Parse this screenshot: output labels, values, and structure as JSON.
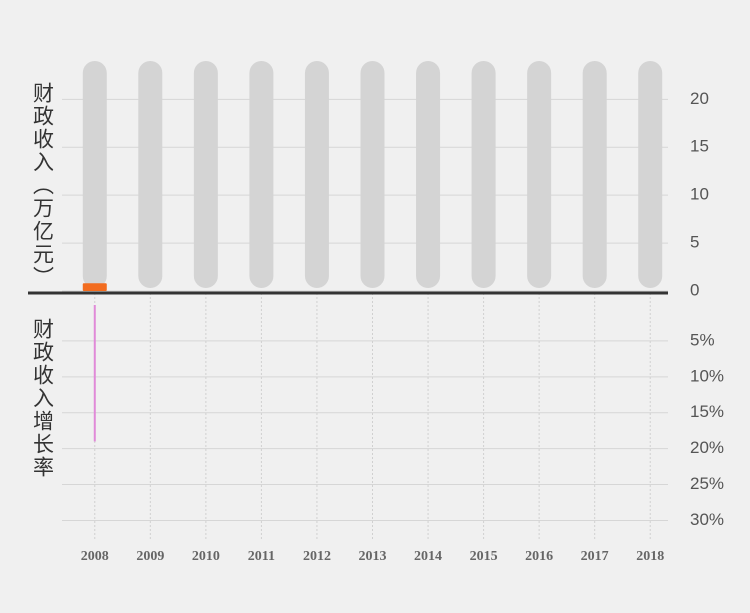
{
  "chart_data": {
    "type": "bar",
    "ylabel": "财政收入（万亿元）",
    "y2label": "财政收入增长率",
    "categories": [
      "2008",
      "2009",
      "2010",
      "2011",
      "2012",
      "2013",
      "2014",
      "2015",
      "2016",
      "2017",
      "2018"
    ],
    "series": [
      {
        "color": "#f26c1f",
        "values": [
          0.6,
          null,
          null,
          null,
          null,
          null,
          null,
          null,
          null,
          null,
          null
        ]
      },
      {
        "color": "#e08ad8",
        "axis": "y2",
        "values": [
          19,
          null,
          null,
          null,
          null,
          null,
          null,
          null,
          null,
          null,
          null
        ]
      }
    ],
    "ylim": [
      0,
      24
    ],
    "yticks": [
      0,
      5,
      10,
      15,
      20
    ],
    "y2lim": [
      0,
      33
    ],
    "y2ticks": [
      {
        "value": 5,
        "label": "5%"
      },
      {
        "value": 10,
        "label": "10%"
      },
      {
        "value": 15,
        "label": "15%"
      },
      {
        "value": 20,
        "label": "20%"
      },
      {
        "value": 25,
        "label": "25%"
      },
      {
        "value": 30,
        "label": "30%"
      }
    ],
    "grid": true
  }
}
